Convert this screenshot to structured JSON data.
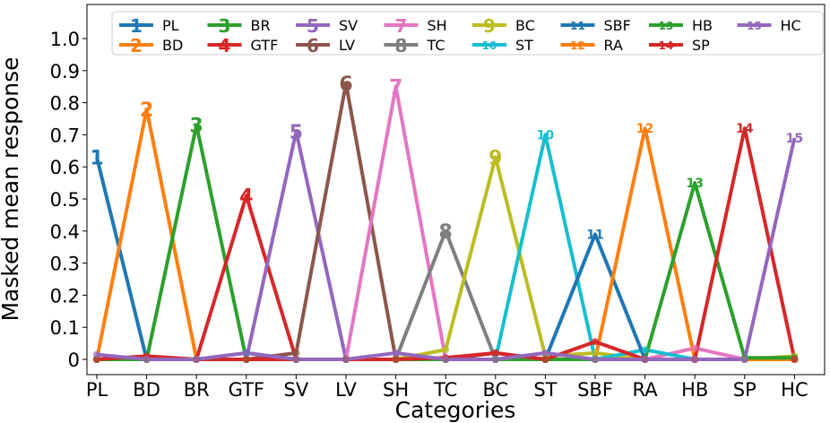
{
  "chart_data": {
    "type": "line",
    "title": "",
    "xlabel": "Categories",
    "ylabel": "Masked mean response",
    "ylim": [
      0,
      1.05
    ],
    "yticks": [
      "0",
      "0.1",
      "0.2",
      "0.3",
      "0.4",
      "0.5",
      "0.6",
      "0.7",
      "0.8",
      "0.9",
      "1.0"
    ],
    "ytick_values": [
      0,
      0.1,
      0.2,
      0.3,
      0.4,
      0.5,
      0.6,
      0.7,
      0.8,
      0.9,
      1.0
    ],
    "categories": [
      "PL",
      "BD",
      "BR",
      "GTF",
      "SV",
      "LV",
      "SH",
      "TC",
      "BC",
      "ST",
      "SBF",
      "RA",
      "HB",
      "SP",
      "HC"
    ],
    "legend_placement": "top",
    "grid": false,
    "series": [
      {
        "name": "PL",
        "marker": "1",
        "color": "#1f77b4",
        "values": [
          0.63,
          0.0,
          0.0,
          0.02,
          0.0,
          0.0,
          0.0,
          0.0,
          0.0,
          0.0,
          0.0,
          0.0,
          0.0,
          0.0,
          0.0
        ]
      },
      {
        "name": "BD",
        "marker": "2",
        "color": "#ff7f0e",
        "values": [
          0.0,
          0.78,
          0.0,
          0.0,
          0.0,
          0.0,
          0.0,
          0.0,
          0.0,
          0.0,
          0.0,
          0.0,
          0.0,
          0.0,
          0.0
        ]
      },
      {
        "name": "BR",
        "marker": "3",
        "color": "#2ca02c",
        "values": [
          0.0,
          0.0,
          0.73,
          0.0,
          0.0,
          0.0,
          0.0,
          0.0,
          0.0,
          0.0,
          0.0,
          0.0,
          0.0,
          0.0,
          0.0
        ]
      },
      {
        "name": "GTF",
        "marker": "4",
        "color": "#d62728",
        "values": [
          0.0,
          0.0,
          0.0,
          0.51,
          0.0,
          0.0,
          0.0,
          0.0,
          0.0,
          0.0,
          0.0,
          0.0,
          0.0,
          0.0,
          0.0
        ]
      },
      {
        "name": "SV",
        "marker": "5",
        "color": "#9467bd",
        "values": [
          0.0,
          0.0,
          0.0,
          0.0,
          0.71,
          0.0,
          0.0,
          0.0,
          0.0,
          0.0,
          0.0,
          0.0,
          0.0,
          0.0,
          0.0
        ]
      },
      {
        "name": "LV",
        "marker": "6",
        "color": "#8c564b",
        "values": [
          0.0,
          0.0,
          0.0,
          0.0,
          0.02,
          0.86,
          0.0,
          0.0,
          0.02,
          0.0,
          0.0,
          0.0,
          0.0,
          0.0,
          0.0
        ]
      },
      {
        "name": "SH",
        "marker": "7",
        "color": "#e377c2",
        "values": [
          0.0,
          0.0,
          0.0,
          0.0,
          0.0,
          0.0,
          0.85,
          0.0,
          0.0,
          0.0,
          0.0,
          0.0,
          0.035,
          0.0,
          0.0
        ]
      },
      {
        "name": "TC",
        "marker": "8",
        "color": "#7f7f7f",
        "values": [
          0.0,
          0.0,
          0.0,
          0.0,
          0.0,
          0.0,
          0.0,
          0.4,
          0.0,
          0.0,
          0.0,
          0.0,
          0.0,
          0.0,
          0.0
        ]
      },
      {
        "name": "BC",
        "marker": "9",
        "color": "#bcbd22",
        "values": [
          0.0,
          0.0,
          0.0,
          0.0,
          0.0,
          0.0,
          0.0,
          0.03,
          0.63,
          0.01,
          0.02,
          0.0,
          0.0,
          0.0,
          0.01
        ]
      },
      {
        "name": "ST",
        "marker": "10",
        "color": "#17becf",
        "values": [
          0.0,
          0.0,
          0.0,
          0.0,
          0.0,
          0.0,
          0.0,
          0.0,
          0.0,
          0.7,
          0.0,
          0.03,
          0.0,
          0.0,
          0.0
        ]
      },
      {
        "name": "SBF",
        "marker": "11",
        "color": "#1f77b4",
        "values": [
          0.0,
          0.0,
          0.0,
          0.0,
          0.0,
          0.0,
          0.0,
          0.0,
          0.0,
          0.0,
          0.39,
          0.0,
          0.0,
          0.0,
          0.0
        ]
      },
      {
        "name": "RA",
        "marker": "12",
        "color": "#ff7f0e",
        "values": [
          0.0,
          0.0,
          0.0,
          0.0,
          0.0,
          0.0,
          0.0,
          0.0,
          0.0,
          0.0,
          0.0,
          0.72,
          0.0,
          0.0,
          0.0
        ]
      },
      {
        "name": "HB",
        "marker": "13",
        "color": "#2ca02c",
        "values": [
          0.0,
          0.0,
          0.0,
          0.0,
          0.0,
          0.0,
          0.0,
          0.0,
          0.0,
          0.0,
          0.0,
          0.0,
          0.55,
          0.005,
          0.005
        ]
      },
      {
        "name": "SP",
        "marker": "14",
        "color": "#d62728",
        "values": [
          0.0,
          0.01,
          0.0,
          0.0,
          0.0,
          0.0,
          0.0,
          0.005,
          0.02,
          0.0,
          0.055,
          0.0,
          0.0,
          0.72,
          0.0
        ]
      },
      {
        "name": "HC",
        "marker": "15",
        "color": "#9467bd",
        "values": [
          0.015,
          0.0,
          0.0,
          0.02,
          0.0,
          0.0,
          0.02,
          0.0,
          0.0,
          0.02,
          0.0,
          0.0,
          0.0,
          0.0,
          0.69
        ]
      }
    ]
  }
}
